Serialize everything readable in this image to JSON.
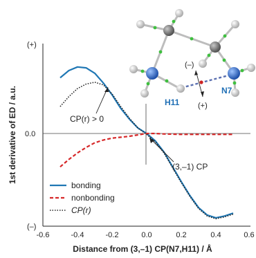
{
  "chart_data": {
    "type": "line",
    "xlabel": "Distance from (3,–1) CP(N7,H11) / Å",
    "ylabel": "1st derivative of ED / a.u.",
    "xlim": [
      -0.6,
      0.6
    ],
    "xticks": [
      "-0.6",
      "-0.4",
      "-0.2",
      "0.0",
      "0.2",
      "0.4",
      "0.6"
    ],
    "yticks": {
      "top": "(+)",
      "zero": "0.0",
      "bottom": "(–)"
    },
    "grid": false,
    "legend_position": "bottom-left",
    "series": [
      {
        "name": "bonding",
        "style": "solid",
        "color": "#1f77b4",
        "points": [
          [
            -0.5,
            0.62
          ],
          [
            -0.45,
            0.7
          ],
          [
            -0.4,
            0.74
          ],
          [
            -0.35,
            0.73
          ],
          [
            -0.3,
            0.67
          ],
          [
            -0.25,
            0.56
          ],
          [
            -0.2,
            0.43
          ],
          [
            -0.15,
            0.28
          ],
          [
            -0.1,
            0.16
          ],
          [
            -0.05,
            0.06
          ],
          [
            0.0,
            0.0
          ],
          [
            0.05,
            -0.08
          ],
          [
            0.1,
            -0.2
          ],
          [
            0.15,
            -0.36
          ],
          [
            0.2,
            -0.52
          ],
          [
            0.25,
            -0.67
          ],
          [
            0.3,
            -0.8
          ],
          [
            0.35,
            -0.88
          ],
          [
            0.4,
            -0.91
          ],
          [
            0.45,
            -0.89
          ],
          [
            0.5,
            -0.86
          ]
        ]
      },
      {
        "name": "nonbonding",
        "style": "dashed",
        "color": "#d62728",
        "points": [
          [
            -0.5,
            -0.36
          ],
          [
            -0.45,
            -0.28
          ],
          [
            -0.4,
            -0.21
          ],
          [
            -0.35,
            -0.15
          ],
          [
            -0.3,
            -0.1
          ],
          [
            -0.25,
            -0.07
          ],
          [
            -0.2,
            -0.05
          ],
          [
            -0.15,
            -0.04
          ],
          [
            -0.1,
            -0.03
          ],
          [
            -0.05,
            -0.015
          ],
          [
            0.0,
            0.0
          ],
          [
            0.05,
            0.0
          ],
          [
            0.1,
            -0.005
          ],
          [
            0.2,
            -0.01
          ],
          [
            0.3,
            -0.01
          ],
          [
            0.4,
            -0.01
          ],
          [
            0.5,
            -0.01
          ]
        ]
      },
      {
        "name": "CP(r)",
        "style": "dotted",
        "color": "#222222",
        "points": [
          [
            -0.5,
            0.3
          ],
          [
            -0.45,
            0.41
          ],
          [
            -0.4,
            0.5
          ],
          [
            -0.35,
            0.55
          ],
          [
            -0.3,
            0.57
          ],
          [
            -0.25,
            0.54
          ],
          [
            -0.2,
            0.44
          ],
          [
            -0.15,
            0.3
          ],
          [
            -0.1,
            0.17
          ],
          [
            -0.05,
            0.06
          ],
          [
            0.0,
            -0.01
          ],
          [
            0.05,
            -0.09
          ],
          [
            0.1,
            -0.21
          ],
          [
            0.15,
            -0.37
          ],
          [
            0.2,
            -0.53
          ],
          [
            0.25,
            -0.68
          ],
          [
            0.3,
            -0.81
          ],
          [
            0.35,
            -0.89
          ],
          [
            0.4,
            -0.92
          ],
          [
            0.45,
            -0.9
          ],
          [
            0.5,
            -0.87
          ]
        ]
      }
    ],
    "annotations": {
      "cp_positive": "CP(r) > 0",
      "cp_point": "(3,–1) CP"
    },
    "molecule": {
      "labels": {
        "h11": "H11",
        "n7": "N7",
        "minus": "(–)",
        "plus": "(+)"
      },
      "colors": {
        "nitrogen": "#1f5fbf",
        "hydrogen": "#d8d8d8",
        "carbon": "#7a7a7a",
        "bond_green": "#3fbf3f",
        "hbond": "#5a6fb0",
        "cp_red": "#cc2222"
      }
    }
  }
}
